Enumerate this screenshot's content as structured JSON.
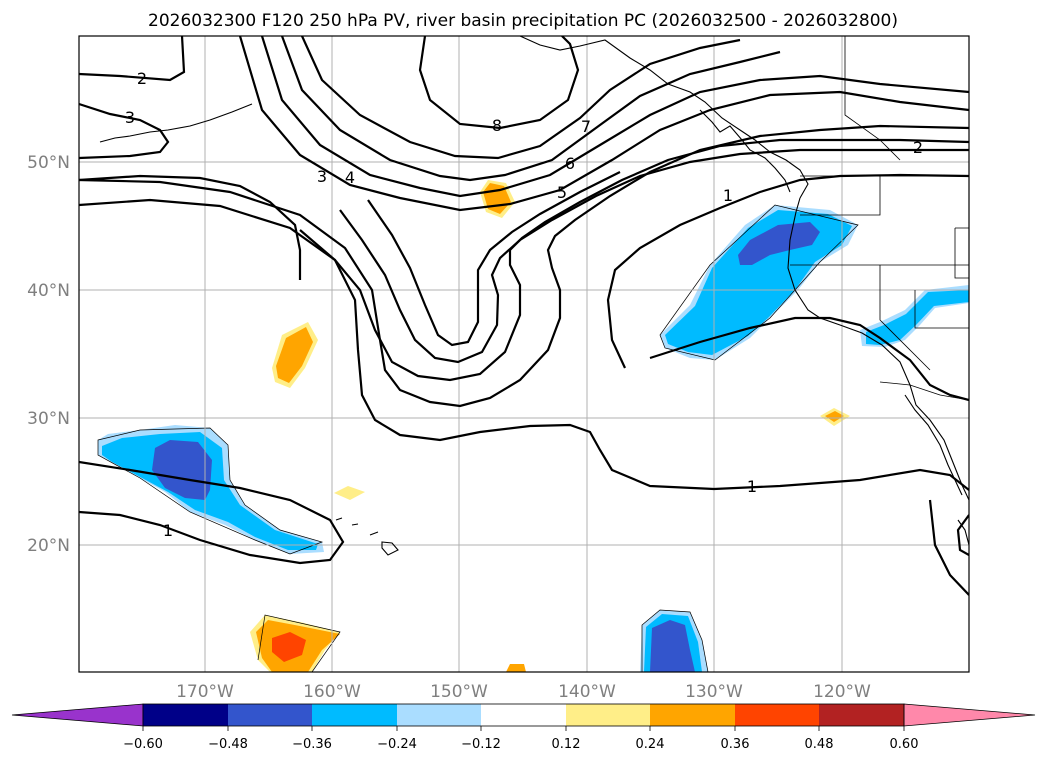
{
  "title": "2026032300 F120 250 hPa PV, river basin precipitation PC (2026032500 - 2026032800)",
  "lat_labels": [
    "50°N",
    "40°N",
    "30°N",
    "20°N"
  ],
  "lon_labels": [
    "170°W",
    "160°W",
    "150°W",
    "140°W",
    "130°W",
    "120°W"
  ],
  "pv_contour_labels": [
    "1",
    "1",
    "1",
    "2",
    "2",
    "3",
    "3",
    "4",
    "5",
    "6",
    "7",
    "8"
  ],
  "colorbar": {
    "ticks": [
      "−0.60",
      "−0.48",
      "−0.36",
      "−0.24",
      "−0.12",
      "0.12",
      "0.24",
      "0.36",
      "0.48",
      "0.60"
    ],
    "colors": [
      "#9933cc",
      "#000088",
      "#3355cc",
      "#00bbff",
      "#aaddff",
      "#ffffff",
      "#ffee88",
      "#ffa500",
      "#ff4400",
      "#b22222",
      "#ff88aa"
    ]
  },
  "fill_colors": {
    "neg_strong": "#3355cc",
    "neg_mid": "#00bbff",
    "neg_weak": "#aaddff",
    "pos_weak": "#ffee88",
    "pos_mid": "#ffa500",
    "pos_strong": "#ff4400"
  }
}
